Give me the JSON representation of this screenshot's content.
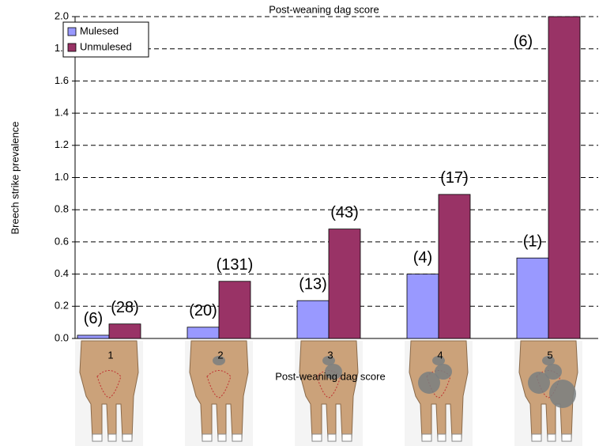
{
  "chart_data": {
    "type": "bar",
    "title": "Post-weaning dag score",
    "x_label": "Post-weaning dag score",
    "y_label": "Breech strike prevalence",
    "categories": [
      "1",
      "2",
      "3",
      "4",
      "5"
    ],
    "series": [
      {
        "name": "Mulesed",
        "color": "#9999ff",
        "values": [
          0.02,
          0.07,
          0.235,
          0.4,
          0.5
        ],
        "annotations": [
          "(6)",
          "(20)",
          "(13)",
          "(4)",
          "(1)"
        ]
      },
      {
        "name": "Unmulesed",
        "color": "#993366",
        "values": [
          0.09,
          0.355,
          0.68,
          0.895,
          2.0
        ],
        "annotations": [
          "(28)",
          "(131)",
          "(43)",
          "(17)",
          "(6)"
        ]
      }
    ],
    "ylim": [
      0,
      2.0
    ],
    "yticks": [
      {
        "value": 0,
        "label": "0.0"
      },
      0.2,
      0.4,
      0.6,
      0.8,
      {
        "value": 1.0,
        "label": "1.0"
      },
      1.2,
      1.4,
      1.6,
      1.8,
      {
        "value": 2.0,
        "label": "2.0"
      }
    ],
    "grid": true,
    "legend": "upper left"
  }
}
